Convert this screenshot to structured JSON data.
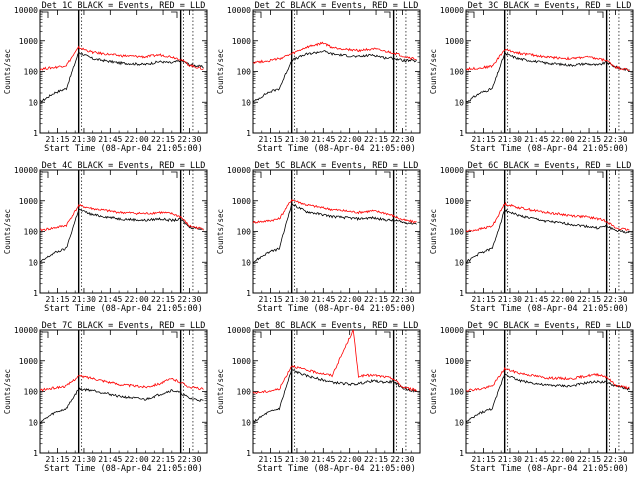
{
  "figure": {
    "x_ticks": [
      "21:15",
      "21:30",
      "21:45",
      "22:00",
      "22:15",
      "22:30"
    ],
    "y_ticks": [
      "1",
      "10",
      "100",
      "1000",
      "10000"
    ],
    "series_colors": {
      "events": "#000000",
      "lld": "#ff0000"
    }
  },
  "chart_data": [
    {
      "type": "line",
      "title": "Det 1C BLACK = Events, RED = LLD",
      "xlabel": "Start Time (08-Apr-04 21:05:00)",
      "ylabel": "Counts/sec",
      "xticks": [
        "21:15",
        "21:30",
        "21:45",
        "22:00",
        "22:15",
        "22:30"
      ],
      "yscale": "log",
      "ylim": [
        1,
        10000
      ],
      "series": [
        {
          "color": "#000000",
          "x": [
            "21:05",
            "21:13",
            "21:20",
            "21:27",
            "21:35",
            "21:50",
            "22:05",
            "22:13",
            "22:20",
            "22:25",
            "22:30",
            "22:38"
          ],
          "values": [
            10,
            20,
            28,
            420,
            260,
            190,
            170,
            210,
            190,
            230,
            170,
            140
          ]
        },
        {
          "color": "#ff0000",
          "x": [
            "21:05",
            "21:13",
            "21:20",
            "21:27",
            "21:35",
            "21:50",
            "22:05",
            "22:13",
            "22:20",
            "22:25",
            "22:30",
            "22:38"
          ],
          "values": [
            120,
            135,
            160,
            600,
            420,
            330,
            300,
            350,
            300,
            250,
            160,
            120
          ]
        }
      ]
    },
    {
      "type": "line",
      "title": "Det 2C BLACK = Events, RED = LLD",
      "xlabel": "Start Time (08-Apr-04 21:05:00)",
      "ylabel": "Counts/sec",
      "xticks": [
        "21:15",
        "21:30",
        "21:45",
        "22:00",
        "22:15",
        "22:30"
      ],
      "yscale": "log",
      "ylim": [
        1,
        10000
      ],
      "series": [
        {
          "color": "#000000",
          "x": [
            "21:05",
            "21:13",
            "21:20",
            "21:27",
            "21:35",
            "21:45",
            "21:50",
            "22:05",
            "22:13",
            "22:20",
            "22:25",
            "22:30",
            "22:38"
          ],
          "values": [
            10,
            20,
            28,
            230,
            360,
            460,
            370,
            300,
            350,
            280,
            270,
            230,
            220
          ]
        },
        {
          "color": "#ff0000",
          "x": [
            "21:05",
            "21:13",
            "21:20",
            "21:27",
            "21:35",
            "21:45",
            "21:50",
            "22:05",
            "22:13",
            "22:20",
            "22:25",
            "22:30",
            "22:38"
          ],
          "values": [
            200,
            220,
            260,
            370,
            600,
            850,
            600,
            480,
            550,
            450,
            400,
            320,
            250
          ]
        }
      ]
    },
    {
      "type": "line",
      "title": "Det 3C BLACK = Events, RED = LLD",
      "xlabel": "Start Time (08-Apr-04 21:05:00)",
      "ylabel": "Counts/sec",
      "xticks": [
        "21:15",
        "21:30",
        "21:45",
        "22:00",
        "22:15",
        "22:30"
      ],
      "yscale": "log",
      "ylim": [
        1,
        10000
      ],
      "series": [
        {
          "color": "#000000",
          "x": [
            "21:05",
            "21:13",
            "21:20",
            "21:27",
            "21:35",
            "21:50",
            "22:05",
            "22:13",
            "22:20",
            "22:25",
            "22:30",
            "22:38"
          ],
          "values": [
            10,
            20,
            28,
            380,
            260,
            190,
            160,
            180,
            160,
            200,
            140,
            110
          ]
        },
        {
          "color": "#ff0000",
          "x": [
            "21:05",
            "21:13",
            "21:20",
            "21:27",
            "21:35",
            "21:50",
            "22:05",
            "22:13",
            "22:20",
            "22:25",
            "22:30",
            "22:38"
          ],
          "values": [
            120,
            130,
            150,
            520,
            400,
            300,
            260,
            300,
            260,
            230,
            140,
            110
          ]
        }
      ]
    },
    {
      "type": "line",
      "title": "Det 4C BLACK = Events, RED = LLD",
      "xlabel": "Start Time (08-Apr-04 21:05:00)",
      "ylabel": "Counts/sec",
      "xticks": [
        "21:15",
        "21:30",
        "21:45",
        "22:00",
        "22:15",
        "22:30"
      ],
      "yscale": "log",
      "ylim": [
        1,
        10000
      ],
      "series": [
        {
          "color": "#000000",
          "x": [
            "21:05",
            "21:13",
            "21:20",
            "21:27",
            "21:35",
            "21:50",
            "22:05",
            "22:13",
            "22:20",
            "22:25",
            "22:30",
            "22:38"
          ],
          "values": [
            10,
            20,
            28,
            520,
            350,
            260,
            230,
            260,
            230,
            250,
            140,
            120
          ]
        },
        {
          "color": "#ff0000",
          "x": [
            "21:05",
            "21:13",
            "21:20",
            "21:27",
            "21:35",
            "21:50",
            "22:05",
            "22:13",
            "22:20",
            "22:25",
            "22:30",
            "22:38"
          ],
          "values": [
            110,
            130,
            160,
            700,
            550,
            420,
            380,
            420,
            380,
            300,
            150,
            120
          ]
        }
      ]
    },
    {
      "type": "line",
      "title": "Det 5C BLACK = Events, RED = LLD",
      "xlabel": "Start Time (08-Apr-04 21:05:00)",
      "ylabel": "Counts/sec",
      "xticks": [
        "21:15",
        "21:30",
        "21:45",
        "22:00",
        "22:15",
        "22:30"
      ],
      "yscale": "log",
      "ylim": [
        1,
        10000
      ],
      "series": [
        {
          "color": "#000000",
          "x": [
            "21:05",
            "21:13",
            "21:20",
            "21:27",
            "21:35",
            "21:50",
            "22:05",
            "22:13",
            "22:20",
            "22:25",
            "22:30",
            "22:38"
          ],
          "values": [
            10,
            20,
            28,
            800,
            450,
            310,
            260,
            280,
            240,
            230,
            200,
            180
          ]
        },
        {
          "color": "#ff0000",
          "x": [
            "21:05",
            "21:13",
            "21:20",
            "21:27",
            "21:35",
            "21:50",
            "22:05",
            "22:13",
            "22:20",
            "22:25",
            "22:30",
            "22:38"
          ],
          "values": [
            200,
            220,
            260,
            1100,
            750,
            520,
            420,
            470,
            400,
            320,
            240,
            200
          ]
        }
      ]
    },
    {
      "type": "line",
      "title": "Det 6C BLACK = Events, RED = LLD",
      "xlabel": "Start Time (08-Apr-04 21:05:00)",
      "ylabel": "Counts/sec",
      "xticks": [
        "21:15",
        "21:30",
        "21:45",
        "22:00",
        "22:15",
        "22:30"
      ],
      "yscale": "log",
      "ylim": [
        1,
        10000
      ],
      "series": [
        {
          "color": "#000000",
          "x": [
            "21:05",
            "21:13",
            "21:20",
            "21:27",
            "21:35",
            "21:50",
            "22:05",
            "22:13",
            "22:20",
            "22:25",
            "22:30",
            "22:38"
          ],
          "values": [
            10,
            20,
            28,
            500,
            330,
            220,
            170,
            150,
            130,
            150,
            110,
            90
          ]
        },
        {
          "color": "#ff0000",
          "x": [
            "21:05",
            "21:13",
            "21:20",
            "21:27",
            "21:35",
            "21:50",
            "22:05",
            "22:13",
            "22:20",
            "22:25",
            "22:30",
            "22:38"
          ],
          "values": [
            100,
            120,
            150,
            800,
            600,
            420,
            330,
            300,
            260,
            220,
            130,
            110
          ]
        }
      ]
    },
    {
      "type": "line",
      "title": "Det 7C BLACK = Events, RED = LLD",
      "xlabel": "Start Time (08-Apr-04 21:05:00)",
      "ylabel": "Counts/sec",
      "xticks": [
        "21:15",
        "21:30",
        "21:45",
        "22:00",
        "22:15",
        "22:30"
      ],
      "yscale": "log",
      "ylim": [
        1,
        10000
      ],
      "series": [
        {
          "color": "#000000",
          "x": [
            "21:05",
            "21:13",
            "21:20",
            "21:27",
            "21:35",
            "21:50",
            "22:05",
            "22:13",
            "22:20",
            "22:25",
            "22:30",
            "22:38"
          ],
          "values": [
            10,
            20,
            28,
            120,
            110,
            70,
            55,
            80,
            110,
            90,
            60,
            50
          ]
        },
        {
          "color": "#ff0000",
          "x": [
            "21:05",
            "21:13",
            "21:20",
            "21:27",
            "21:35",
            "21:50",
            "22:05",
            "22:13",
            "22:20",
            "22:25",
            "22:30",
            "22:38"
          ],
          "values": [
            110,
            130,
            150,
            320,
            270,
            170,
            140,
            180,
            260,
            200,
            140,
            120
          ]
        }
      ]
    },
    {
      "type": "line",
      "title": "Det 8C BLACK = Events, RED = LLD",
      "xlabel": "Start Time (08-Apr-04 21:05:00)",
      "ylabel": "Counts/sec",
      "xticks": [
        "21:15",
        "21:30",
        "21:45",
        "22:00",
        "22:15",
        "22:30"
      ],
      "yscale": "log",
      "ylim": [
        1,
        10000
      ],
      "series": [
        {
          "color": "#000000",
          "x": [
            "21:05",
            "21:13",
            "21:20",
            "21:27",
            "21:35",
            "21:50",
            "22:02",
            "22:05",
            "22:13",
            "22:20",
            "22:25",
            "22:30",
            "22:38"
          ],
          "values": [
            10,
            20,
            28,
            500,
            330,
            200,
            170,
            180,
            220,
            200,
            210,
            130,
            100
          ]
        },
        {
          "color": "#ff0000",
          "x": [
            "21:05",
            "21:13",
            "21:20",
            "21:27",
            "21:35",
            "21:50",
            "22:02",
            "22:05",
            "22:13",
            "22:20",
            "22:25",
            "22:30",
            "22:38"
          ],
          "values": [
            90,
            100,
            120,
            700,
            500,
            330,
            10000,
            320,
            340,
            300,
            260,
            140,
            110
          ]
        }
      ]
    },
    {
      "type": "line",
      "title": "Det 9C BLACK = Events, RED = LLD",
      "xlabel": "Start Time (08-Apr-04 21:05:00)",
      "ylabel": "Counts/sec",
      "xticks": [
        "21:15",
        "21:30",
        "21:45",
        "22:00",
        "22:15",
        "22:30"
      ],
      "yscale": "log",
      "ylim": [
        1,
        10000
      ],
      "series": [
        {
          "color": "#000000",
          "x": [
            "21:05",
            "21:13",
            "21:20",
            "21:27",
            "21:35",
            "21:50",
            "22:05",
            "22:13",
            "22:20",
            "22:25",
            "22:30",
            "22:38"
          ],
          "values": [
            10,
            20,
            28,
            380,
            230,
            160,
            150,
            190,
            210,
            200,
            150,
            120
          ]
        },
        {
          "color": "#ff0000",
          "x": [
            "21:05",
            "21:13",
            "21:20",
            "21:27",
            "21:35",
            "21:50",
            "22:05",
            "22:13",
            "22:20",
            "22:25",
            "22:30",
            "22:38"
          ],
          "values": [
            110,
            120,
            150,
            550,
            400,
            280,
            260,
            320,
            360,
            300,
            160,
            130
          ]
        }
      ]
    }
  ]
}
